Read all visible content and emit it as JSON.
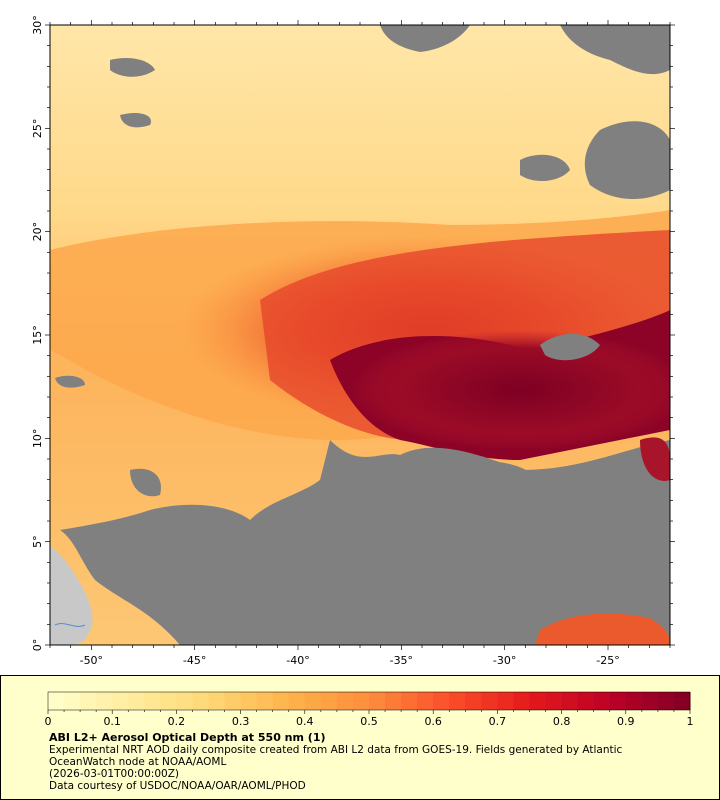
{
  "map": {
    "lon_ticks": [
      "-50°",
      "-45°",
      "-40°",
      "-35°",
      "-30°",
      "-25°"
    ],
    "lat_ticks": [
      "0°",
      "5°",
      "10°",
      "15°",
      "20°",
      "25°",
      "30°"
    ],
    "lon_range": [
      -52,
      -22
    ],
    "lat_range": [
      0,
      30
    ],
    "colors": {
      "no_data": "#808080",
      "land": "#c8c8c8",
      "river": "#5a8ccc"
    }
  },
  "legend": {
    "colorbar_ticks": [
      "0",
      "0.1",
      "0.2",
      "0.3",
      "0.4",
      "0.5",
      "0.6",
      "0.7",
      "0.8",
      "0.9",
      "1"
    ],
    "colorbar_range": [
      0,
      1
    ],
    "colorbar_colors": [
      "#ffffcc",
      "#ffeda0",
      "#fed976",
      "#feb24c",
      "#fd8d3c",
      "#fc4e2a",
      "#e31a1c",
      "#bd0026",
      "#800026"
    ],
    "title": "ABI L2+ Aerosol Optical Depth at 550 nm (1)",
    "caption_line1": "Experimental NRT AOD daily composite created from ABI L2 data from GOES-19. Fields generated by Atlantic",
    "caption_line2": "OceanWatch node at NOAA/AOML",
    "caption_line3": "(2026-03-01T00:00:00Z)",
    "caption_line4": "Data courtesy of USDOC/NOAA/OAR/AOML/PHOD"
  }
}
